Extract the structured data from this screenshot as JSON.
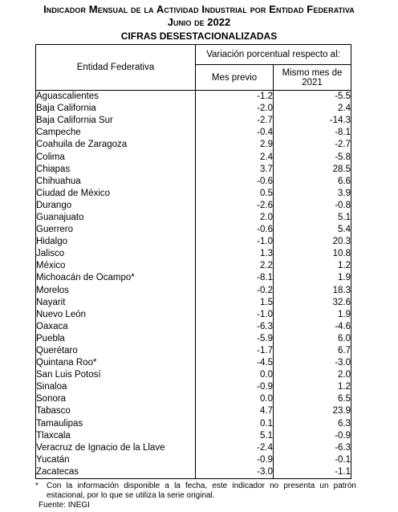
{
  "header": {
    "title": "Indicador Mensual de la Actividad Industrial por Entidad Federativa",
    "period": "Junio de 2022",
    "subtitle": "CIFRAS DESESTACIONALIZADAS"
  },
  "table": {
    "columns": [
      "Entidad Federativa",
      "Variación porcentual respecto al:",
      "Mes previo",
      "Mismo mes de 2021"
    ],
    "rows": [
      [
        "Aguascalientes",
        "-1.2",
        "-5.5"
      ],
      [
        "Baja California",
        "-2.0",
        "2.4"
      ],
      [
        "Baja California Sur",
        "-2.7",
        "-14.3"
      ],
      [
        "Campeche",
        "-0.4",
        "-8.1"
      ],
      [
        "Coahuila de Zaragoza",
        "2.9",
        "-2.7"
      ],
      [
        "Colima",
        "2.4",
        "-5.8"
      ],
      [
        "Chiapas",
        "3.7",
        "28.5"
      ],
      [
        "Chihuahua",
        "-0.6",
        "6.6"
      ],
      [
        "Ciudad de México",
        "0.5",
        "3.9"
      ],
      [
        "Durango",
        "-2.6",
        "-0.8"
      ],
      [
        "Guanajuato",
        "2.0",
        "5.1"
      ],
      [
        "Guerrero",
        "-0.6",
        "5.4"
      ],
      [
        "Hidalgo",
        "-1.0",
        "20.3"
      ],
      [
        "Jalisco",
        "1.3",
        "10.8"
      ],
      [
        "México",
        "2.2",
        "1.2"
      ],
      [
        "Michoacán de Ocampo*",
        "-8.1",
        "1.9"
      ],
      [
        "Morelos",
        "-0.2",
        "18.3"
      ],
      [
        "Nayarit",
        "1.5",
        "32.6"
      ],
      [
        "Nuevo León",
        "-1.0",
        "1.9"
      ],
      [
        "Oaxaca",
        "-6.3",
        "-4.6"
      ],
      [
        "Puebla",
        "-5.9",
        "6.0"
      ],
      [
        "Querétaro",
        "-1.7",
        "6.7"
      ],
      [
        "Quintana Roo*",
        "-4.5",
        "-3.0"
      ],
      [
        "San Luis Potosí",
        "0.0",
        "2.0"
      ],
      [
        "Sinaloa",
        "-0.9",
        "1.2"
      ],
      [
        "Sonora",
        "0.0",
        "6.5"
      ],
      [
        "Tabasco",
        "4.7",
        "23.9"
      ],
      [
        "Tamaulipas",
        "0.1",
        "6.3"
      ],
      [
        "Tlaxcala",
        "5.1",
        "-0.9"
      ],
      [
        "Veracruz de Ignacio de la Llave",
        "-2.4",
        "-6.3"
      ],
      [
        "Yucatán",
        "-0.9",
        "-0.1"
      ],
      [
        "Zacatecas",
        "-3.0",
        "-1.1"
      ]
    ]
  },
  "footer": {
    "note_mark": "*",
    "note": "Con la información disponible a la fecha, este indicador no presenta un patrón estacional, por lo que se utiliza la serie original.",
    "source": "Fuente: INEGI"
  }
}
